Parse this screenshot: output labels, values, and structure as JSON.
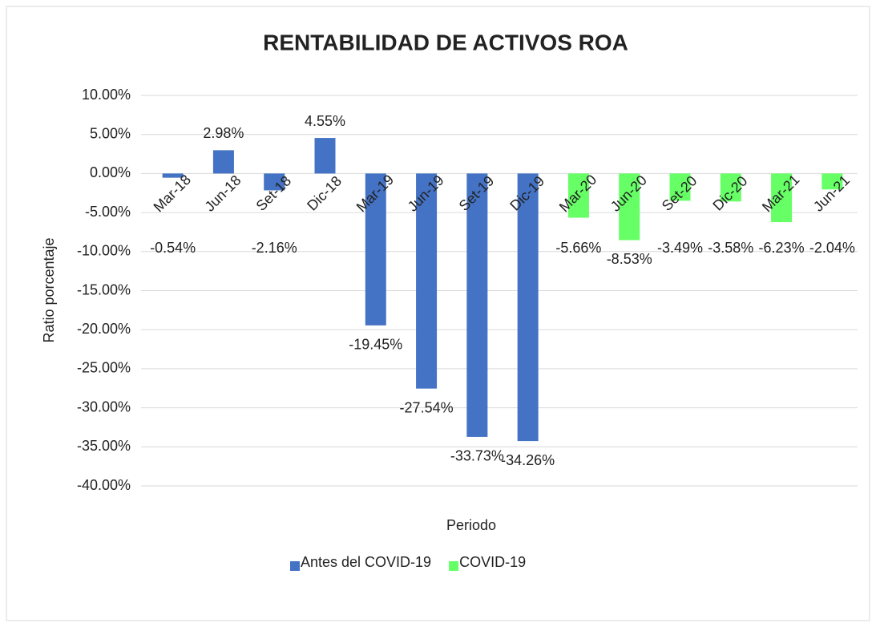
{
  "chart_data": {
    "type": "bar",
    "title": "RENTABILIDAD DE ACTIVOS ROA",
    "x_label": "Periodo",
    "y_label": "Ratio  porcentaje",
    "categories": [
      "Mar-18",
      "Jun-18",
      "Set-18",
      "Dic-18",
      "Mar-19",
      "Jun-19",
      "Set-19",
      "Dic-19",
      "Mar-20",
      "Jun-20",
      "Set-20",
      "Dic-20",
      "Mar-21",
      "Jun-21"
    ],
    "series": [
      {
        "name": "Antes del COVID-19",
        "color": "#4472c4",
        "values": [
          -0.54,
          2.98,
          -2.16,
          4.55,
          -19.45,
          -27.54,
          -33.73,
          -34.26,
          null,
          null,
          null,
          null,
          null,
          null
        ],
        "value_labels": [
          "-0.54%",
          "2.98%",
          "-2.16%",
          "4.55%",
          "-19.45%",
          "-27.54%",
          "-33.73%",
          "-34.26%",
          null,
          null,
          null,
          null,
          null,
          null
        ]
      },
      {
        "name": "COVID-19",
        "color": "#66ff66",
        "values": [
          null,
          null,
          null,
          null,
          null,
          null,
          null,
          null,
          -5.66,
          -8.53,
          -3.49,
          -3.58,
          -6.23,
          -2.04
        ],
        "value_labels": [
          null,
          null,
          null,
          null,
          null,
          null,
          null,
          null,
          "-5.66%",
          "-8.53%",
          "-3.49%",
          "-3.58%",
          "-6.23%",
          "-2.04%"
        ]
      }
    ],
    "ylim": [
      -40,
      10
    ],
    "yticks": [
      {
        "value": 10,
        "label": "10.00%"
      },
      {
        "value": 5,
        "label": "5.00%"
      },
      {
        "value": 0,
        "label": "0.00%"
      },
      {
        "value": -5,
        "label": "-5.00%"
      },
      {
        "value": -10,
        "label": "-10.00%"
      },
      {
        "value": -15,
        "label": "-15.00%"
      },
      {
        "value": -20,
        "label": "-20.00%"
      },
      {
        "value": -25,
        "label": "-25.00%"
      },
      {
        "value": -30,
        "label": "-30.00%"
      },
      {
        "value": -35,
        "label": "-35.00%"
      },
      {
        "value": -40,
        "label": "-40.00%"
      }
    ],
    "grid": true,
    "legend": "bottom"
  }
}
